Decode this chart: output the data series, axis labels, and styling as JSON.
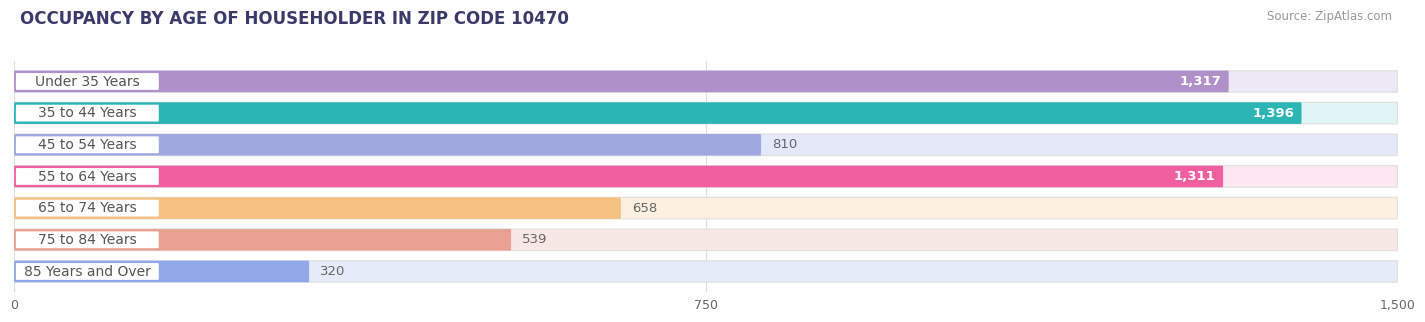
{
  "title": "OCCUPANCY BY AGE OF HOUSEHOLDER IN ZIP CODE 10470",
  "source": "Source: ZipAtlas.com",
  "categories": [
    "Under 35 Years",
    "35 to 44 Years",
    "45 to 54 Years",
    "55 to 64 Years",
    "65 to 74 Years",
    "75 to 84 Years",
    "85 Years and Over"
  ],
  "values": [
    1317,
    1396,
    810,
    1311,
    658,
    539,
    320
  ],
  "bar_colors": [
    "#b090c8",
    "#2bb5b5",
    "#a0a8e0",
    "#f060a0",
    "#f5c080",
    "#e8a090",
    "#90a8e8"
  ],
  "bar_bg_colors": [
    "#ede8f5",
    "#e0f5f5",
    "#e5e8f8",
    "#fde8f2",
    "#fdf0e0",
    "#f8e8e5",
    "#e5ecf8"
  ],
  "label_bg_color": "#ffffff",
  "label_text_color": "#555555",
  "xlim_max": 1500,
  "xticks": [
    0,
    750,
    1500
  ],
  "title_color": "#3a3a6a",
  "source_color": "#999999",
  "label_color_inside": "#ffffff",
  "label_color_outside": "#666666",
  "background_color": "#ffffff",
  "grid_color": "#dddddd",
  "title_fontsize": 12,
  "source_fontsize": 8.5,
  "bar_label_fontsize": 9.5,
  "category_fontsize": 10,
  "bar_height": 0.68,
  "bar_gap": 1.0
}
